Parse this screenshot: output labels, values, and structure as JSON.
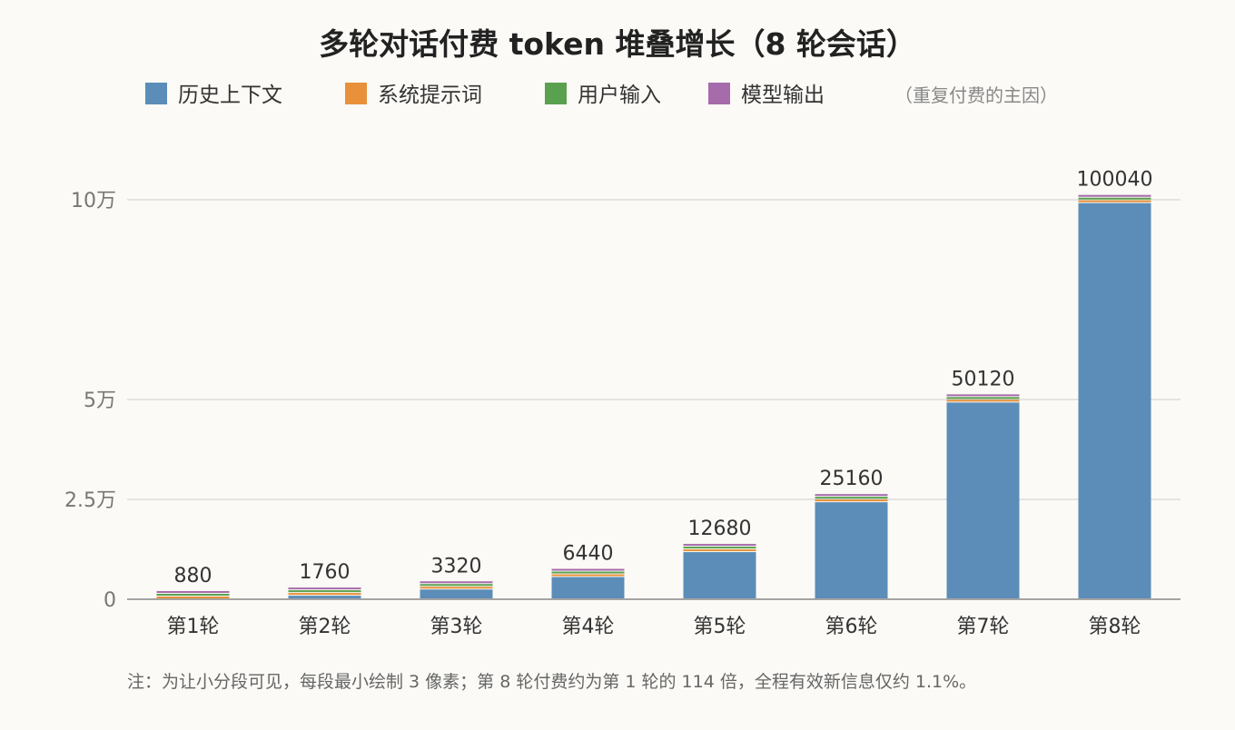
{
  "chart_data": {
    "type": "bar",
    "stacked": true,
    "title": "多轮对话付费 token 堆叠增长（8 轮会话）",
    "legend_position": "top",
    "legend_note": "（重复付费的主因）",
    "categories": [
      "第1轮",
      "第2轮",
      "第3轮",
      "第4轮",
      "第5轮",
      "第6轮",
      "第7轮",
      "第8轮"
    ],
    "totals": [
      880,
      1760,
      3320,
      6440,
      12680,
      25160,
      50120,
      100040
    ],
    "total_labels": [
      "880",
      "1760",
      "3320",
      "6440",
      "12680",
      "25160",
      "50120",
      "100040"
    ],
    "series": [
      {
        "name": "历史上下文",
        "color": "#5b8db8",
        "values": [
          0,
          880,
          2440,
          5560,
          11800,
          24280,
          49240,
          99160
        ]
      },
      {
        "name": "系统提示词",
        "color": "#e8913a",
        "values": [
          500,
          500,
          500,
          500,
          500,
          500,
          500,
          500
        ]
      },
      {
        "name": "用户输入",
        "color": "#59a14f",
        "values": [
          60,
          60,
          60,
          60,
          60,
          60,
          60,
          60
        ]
      },
      {
        "name": "模型输出",
        "color": "#a66bab",
        "values": [
          320,
          320,
          320,
          320,
          320,
          320,
          320,
          320
        ]
      }
    ],
    "ylim": [
      0,
      100000
    ],
    "yticks": [
      {
        "value": 0,
        "label": "0"
      },
      {
        "value": 25000,
        "label": "2.5万"
      },
      {
        "value": 50000,
        "label": "5万"
      },
      {
        "value": 100000,
        "label": "10万"
      }
    ],
    "grid": true,
    "min_segment_px": 3,
    "footnote": "注：为让小分段可见，每段最小绘制 3 像素；第 8 轮付费约为第 1 轮的 114 倍，全程有效新信息仅约 1.1%。"
  }
}
